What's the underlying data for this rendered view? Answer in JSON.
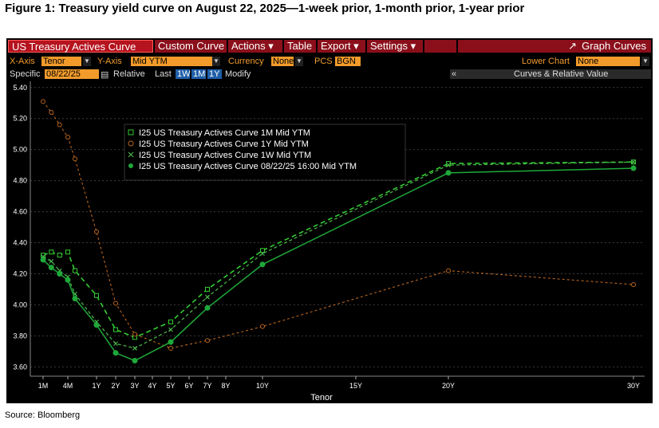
{
  "figure_title": "Figure 1: Treasury yield curve on August 22, 2025—1-week prior, 1-month prior, 1-year prior",
  "source": "Source: Bloomberg",
  "menubar": {
    "tab_main": "US Treasury Actives Curve",
    "custom_curve": "Custom Curve",
    "actions": "Actions ▾",
    "table": "Table",
    "export": "Export ▾",
    "settings": "Settings ▾",
    "graph_curves": "Graph Curves"
  },
  "controls": {
    "x_axis_label": "X-Axis",
    "x_axis_value": "Tenor",
    "y_axis_label": "Y-Axis",
    "y_axis_value": "Mid YTM",
    "currency_label": "Currency",
    "currency_value": "None",
    "pcs_label": "PCS",
    "pcs_value": "BGN",
    "lower_chart_label": "Lower Chart",
    "lower_chart_value": "None",
    "specific_label": "Specific",
    "specific_value": "08/22/25",
    "relative_label": "Relative",
    "last_label": "Last",
    "btn_1w": "1W",
    "btn_1m": "1M",
    "btn_1y": "1Y",
    "modify_label": "Modify",
    "collapse_glyph": "«",
    "curves_rel_label": "Curves & Relative Value"
  },
  "colors": {
    "curve_1m": "#33cc33",
    "curve_1y": "#b8651f",
    "curve_1w": "#4cbc4c",
    "curve_current": "#1fa83a",
    "axis_text": "#ffffff",
    "menu_bg": "#8b0f1b",
    "field_bg": "#f29b2b"
  },
  "chart_data": {
    "type": "line",
    "xlabel": "Tenor",
    "ylabel": "",
    "ylim": [
      3.54,
      5.44
    ],
    "x_ticks": [
      {
        "label": "1M",
        "years": 0.0833
      },
      {
        "label": "4M",
        "years": 0.3333
      },
      {
        "label": "1Y",
        "years": 1
      },
      {
        "label": "2Y",
        "years": 2
      },
      {
        "label": "3Y",
        "years": 3
      },
      {
        "label": "4Y",
        "years": 4
      },
      {
        "label": "5Y",
        "years": 5
      },
      {
        "label": "6Y",
        "years": 6
      },
      {
        "label": "7Y",
        "years": 7
      },
      {
        "label": "8Y",
        "years": 8
      },
      {
        "label": "10Y",
        "years": 10
      },
      {
        "label": "15Y",
        "years": 15
      },
      {
        "label": "20Y",
        "years": 20
      },
      {
        "label": "30Y",
        "years": 30
      }
    ],
    "y_ticks": [
      "3.60",
      "3.80",
      "4.00",
      "4.20",
      "4.40",
      "4.60",
      "4.80",
      "5.00",
      "5.20",
      "5.40"
    ],
    "grid": true,
    "legend_position": "top-left",
    "series": [
      {
        "name": "I25 US Treasury Actives Curve 1M Mid YTM",
        "marker": "square",
        "dash": "6,4",
        "points": [
          [
            0.0833,
            4.32
          ],
          [
            0.1667,
            4.34
          ],
          [
            0.25,
            4.32
          ],
          [
            0.3333,
            4.34
          ],
          [
            0.5,
            4.22
          ],
          [
            1,
            4.06
          ],
          [
            2,
            3.84
          ],
          [
            3,
            3.79
          ],
          [
            5,
            3.89
          ],
          [
            7,
            4.1
          ],
          [
            10,
            4.35
          ],
          [
            20,
            4.91
          ],
          [
            30,
            4.92
          ]
        ]
      },
      {
        "name": "I25 US Treasury Actives Curve 1Y Mid YTM",
        "marker": "circle-open",
        "dash": "3,3",
        "points": [
          [
            0.0833,
            5.31
          ],
          [
            0.1667,
            5.24
          ],
          [
            0.25,
            5.16
          ],
          [
            0.3333,
            5.08
          ],
          [
            0.5,
            4.94
          ],
          [
            1,
            4.47
          ],
          [
            2,
            4.01
          ],
          [
            3,
            3.81
          ],
          [
            5,
            3.72
          ],
          [
            7,
            3.77
          ],
          [
            10,
            3.86
          ],
          [
            20,
            4.22
          ],
          [
            30,
            4.13
          ]
        ]
      },
      {
        "name": "I25 US Treasury Actives Curve 1W Mid YTM",
        "marker": "x",
        "dash": "4,3",
        "points": [
          [
            0.0833,
            4.31
          ],
          [
            0.1667,
            4.28
          ],
          [
            0.25,
            4.22
          ],
          [
            0.3333,
            4.18
          ],
          [
            0.5,
            4.07
          ],
          [
            1,
            3.89
          ],
          [
            2,
            3.75
          ],
          [
            3,
            3.72
          ],
          [
            5,
            3.84
          ],
          [
            7,
            4.05
          ],
          [
            10,
            4.33
          ],
          [
            20,
            4.9
          ],
          [
            30,
            4.92
          ]
        ]
      },
      {
        "name": "I25 US Treasury Actives Curve 08/22/25 16:00 Mid YTM",
        "marker": "circle-filled",
        "dash": "",
        "points": [
          [
            0.0833,
            4.29
          ],
          [
            0.1667,
            4.24
          ],
          [
            0.25,
            4.2
          ],
          [
            0.3333,
            4.16
          ],
          [
            0.5,
            4.04
          ],
          [
            1,
            3.87
          ],
          [
            2,
            3.69
          ],
          [
            3,
            3.64
          ],
          [
            5,
            3.76
          ],
          [
            7,
            3.98
          ],
          [
            10,
            4.26
          ],
          [
            20,
            4.85
          ],
          [
            30,
            4.88
          ]
        ]
      }
    ]
  }
}
